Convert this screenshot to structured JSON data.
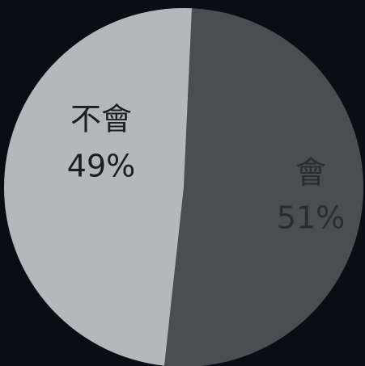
{
  "chart_data": {
    "type": "pie",
    "categories": [
      "會",
      "不會"
    ],
    "values": [
      51,
      49
    ],
    "value_labels": [
      "51%",
      "49%"
    ],
    "colors": [
      "#4b4e51",
      "#b5b8ba"
    ]
  }
}
